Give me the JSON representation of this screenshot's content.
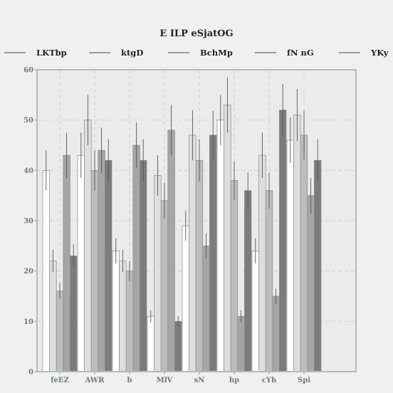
{
  "chart_data": {
    "type": "bar",
    "title": "E  ILP eSjatOG",
    "xlabel": "",
    "ylabel": "",
    "ylim": [
      0,
      60
    ],
    "yticks": [
      0,
      10,
      20,
      30,
      40,
      50,
      60
    ],
    "grid": true,
    "legend_position": "top",
    "categories": [
      "feEZ",
      "AWR",
      "b",
      "MlV",
      "sN",
      "hp",
      "cYh",
      "Spi"
    ],
    "series": [
      {
        "name": "LKTbp",
        "color": "#ffffff",
        "values": [
          40,
          43,
          24,
          11,
          29,
          50,
          24,
          46
        ],
        "errors": [
          4,
          4.5,
          2.5,
          1.2,
          3,
          5,
          2.5,
          4.5
        ]
      },
      {
        "name": "ktgD",
        "color": "#dedede",
        "values": [
          22,
          50,
          22,
          39,
          47,
          53,
          43,
          51
        ],
        "errors": [
          2.2,
          5,
          2.2,
          4,
          5,
          5.5,
          4.5,
          5.2
        ]
      },
      {
        "name": "BchMp",
        "color": "#bdbdbd",
        "values": [
          16,
          40,
          20,
          34,
          42,
          38,
          36,
          47
        ],
        "errors": [
          1.6,
          4,
          2,
          3.5,
          4.2,
          3.8,
          3.6,
          4.8
        ]
      },
      {
        "name": "fN nG",
        "color": "#a5a5a5",
        "values": [
          43,
          44,
          45,
          48,
          25,
          11,
          15,
          35
        ],
        "errors": [
          4.5,
          4.5,
          4.5,
          5,
          2.5,
          1.2,
          1.5,
          3.5
        ]
      },
      {
        "name": "YKy",
        "color": "#7c7c7c",
        "values": [
          23,
          42,
          42,
          10,
          47,
          36,
          52,
          42
        ],
        "errors": [
          2.3,
          4.2,
          4.2,
          1,
          4.8,
          3.6,
          5.2,
          4.2
        ]
      }
    ]
  }
}
